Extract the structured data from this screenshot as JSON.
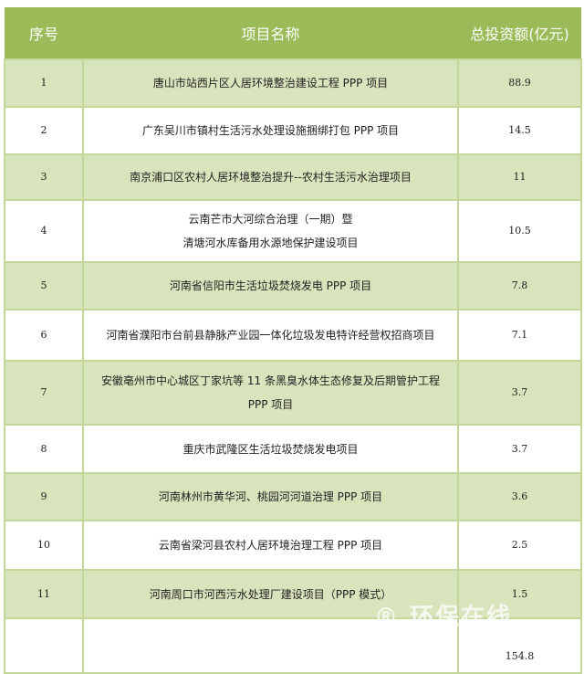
{
  "colors": {
    "header": "#9bbb59",
    "row_alt": "#d8e4bc",
    "border": "#c4d79b"
  },
  "header": {
    "index": "序号",
    "name": "项目名称",
    "amount": "总投资额(亿元)"
  },
  "rows": [
    {
      "index": "1",
      "name": [
        "唐山市站西片区人居环境整治建设工程 PPP 项目"
      ],
      "amount": "88.9"
    },
    {
      "index": "2",
      "name": [
        "广东吴川市镇村生活污水处理设施捆绑打包 PPP 项目"
      ],
      "amount": "14.5"
    },
    {
      "index": "3",
      "name": [
        "南京浦口区农村人居环境整治提升--农村生活污水治理项目"
      ],
      "amount": "11"
    },
    {
      "index": "4",
      "name": [
        "云南芒市大河综合治理（一期）暨",
        "清塘河水库备用水源地保护建设项目"
      ],
      "amount": "10.5"
    },
    {
      "index": "5",
      "name": [
        "河南省信阳市生活垃圾焚烧发电 PPP 项目"
      ],
      "amount": "7.8"
    },
    {
      "index": "6",
      "name": [
        "河南省濮阳市台前县静脉产业园一体化垃圾发电特许经营权招商项目"
      ],
      "amount": "7.1"
    },
    {
      "index": "7",
      "name": [
        "安徽亳州市中心城区丁家坑等 11 条黑臭水体生态修复及后期管护工程",
        "PPP 项目"
      ],
      "amount": "3.7"
    },
    {
      "index": "8",
      "name": [
        "重庆市武隆区生活垃圾焚烧发电项目"
      ],
      "amount": "3.7"
    },
    {
      "index": "9",
      "name": [
        "河南林州市黄华河、桃园河河道治理 PPP 项目"
      ],
      "amount": "3.6"
    },
    {
      "index": "10",
      "name": [
        "云南省梁河县农村人居环境治理工程 PPP 项目"
      ],
      "amount": "2.5"
    },
    {
      "index": "11",
      "name": [
        "河南周口市河西污水处理厂建设项目（PPP 模式）"
      ],
      "amount": "1.5"
    }
  ],
  "total": {
    "index": "",
    "name": "",
    "amount": "154.8"
  },
  "watermark": "环保在线"
}
